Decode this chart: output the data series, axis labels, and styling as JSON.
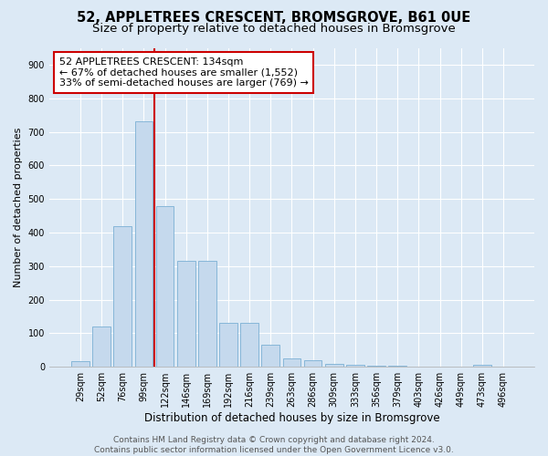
{
  "title_line1": "52, APPLETREES CRESCENT, BROMSGROVE, B61 0UE",
  "title_line2": "Size of property relative to detached houses in Bromsgrove",
  "xlabel": "Distribution of detached houses by size in Bromsgrove",
  "ylabel": "Number of detached properties",
  "bar_color": "#c5d9ed",
  "bar_edge_color": "#7bafd4",
  "categories": [
    "29sqm",
    "52sqm",
    "76sqm",
    "99sqm",
    "122sqm",
    "146sqm",
    "169sqm",
    "192sqm",
    "216sqm",
    "239sqm",
    "263sqm",
    "286sqm",
    "309sqm",
    "333sqm",
    "356sqm",
    "379sqm",
    "403sqm",
    "426sqm",
    "449sqm",
    "473sqm",
    "496sqm"
  ],
  "values": [
    18,
    120,
    420,
    730,
    480,
    315,
    315,
    130,
    130,
    65,
    25,
    20,
    10,
    5,
    2,
    2,
    0,
    0,
    0,
    5,
    0
  ],
  "ylim": [
    0,
    950
  ],
  "yticks": [
    0,
    100,
    200,
    300,
    400,
    500,
    600,
    700,
    800,
    900
  ],
  "vline_x_index": 4.0,
  "vline_color": "#cc0000",
  "annotation_text": "52 APPLETREES CRESCENT: 134sqm\n← 67% of detached houses are smaller (1,552)\n33% of semi-detached houses are larger (769) →",
  "footer_text": "Contains HM Land Registry data © Crown copyright and database right 2024.\nContains public sector information licensed under the Open Government Licence v3.0.",
  "background_color": "#dce9f5",
  "plot_bg_color": "#dce9f5",
  "grid_color": "#ffffff",
  "title_fontsize": 10.5,
  "subtitle_fontsize": 9.5,
  "ylabel_fontsize": 8,
  "xlabel_fontsize": 8.5,
  "annotation_fontsize": 8,
  "tick_fontsize": 7,
  "footer_fontsize": 6.5
}
